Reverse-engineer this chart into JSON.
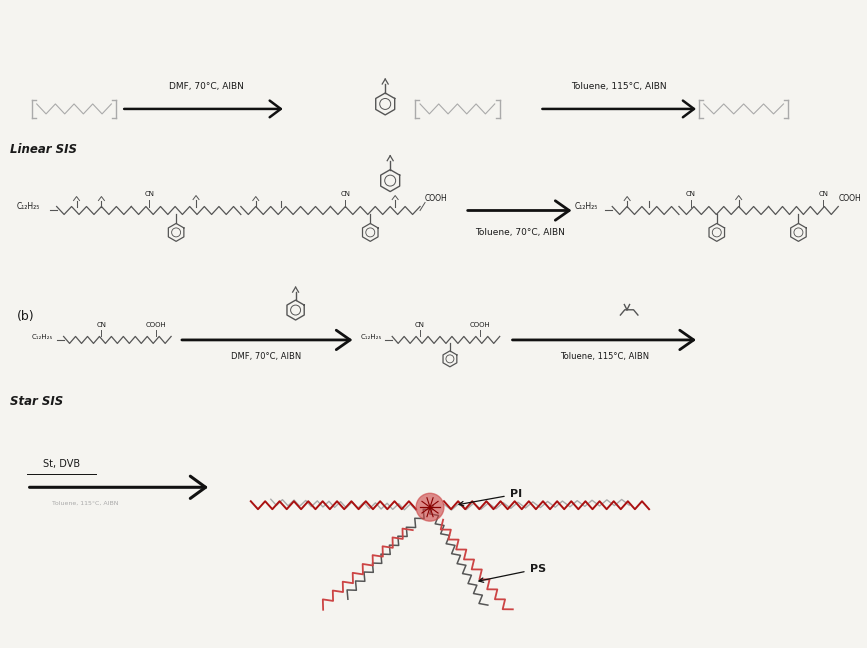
{
  "background_color": "#f5f4f0",
  "fig_width": 8.67,
  "fig_height": 6.48,
  "dpi": 100,
  "linear_sis_label": "Linear SIS",
  "star_sis_label": "Star SIS",
  "label_b": "(b)",
  "reaction1_text": "DMF, 70°C, AIBN",
  "reaction2_text": "Toluene, 115°C, AIBN",
  "reaction3_text": "DMF, 70°C, AIBN",
  "reaction4_text": "Toluene, 115°C, AIBN",
  "reaction5_text": "Toluene, 70°C, AIBN",
  "st_dvb_text": "St, DVB",
  "ps_label": "PS",
  "pi_label": "PI",
  "text_color": "#1a1a1a",
  "gray_color": "#555555",
  "light_gray": "#aaaaaa",
  "red_color": "#aa1111",
  "red_light": "#cc4444",
  "arrow_color": "#111111",
  "c12_label": "C₁₂H₂₅",
  "cooh_label": "COOH",
  "cn_label": "CN"
}
